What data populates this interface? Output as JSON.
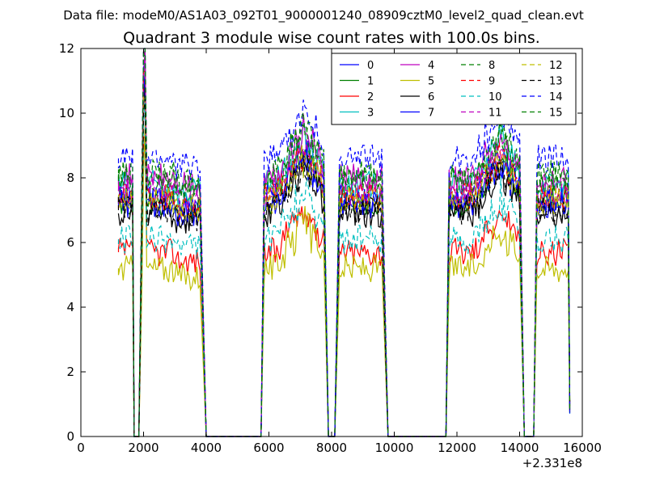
{
  "header": {
    "file_label": "Data file: modeM0/AS1A03_092T01_9000001240_08909cztM0_level2_quad_clean.evt"
  },
  "chart_data": {
    "type": "line",
    "title": "Quadrant 3 module wise count rates with 100.0s bins.",
    "xlabel": "",
    "ylabel": "",
    "x_offset_label": "+2.331e8",
    "xlim": [
      0,
      16000
    ],
    "ylim": [
      0,
      12
    ],
    "x_ticks": [
      0,
      2000,
      4000,
      6000,
      8000,
      10000,
      12000,
      14000,
      16000
    ],
    "y_ticks": [
      0,
      2,
      4,
      6,
      8,
      10,
      12
    ],
    "grid": false,
    "legend_position": "top-right",
    "legend_columns": 4,
    "series": [
      {
        "name": "0",
        "color": "#0000ff",
        "dash": "solid"
      },
      {
        "name": "1",
        "color": "#008000",
        "dash": "solid"
      },
      {
        "name": "2",
        "color": "#ff0000",
        "dash": "solid"
      },
      {
        "name": "3",
        "color": "#00bfbf",
        "dash": "solid"
      },
      {
        "name": "4",
        "color": "#bf00bf",
        "dash": "solid"
      },
      {
        "name": "5",
        "color": "#bfbf00",
        "dash": "solid"
      },
      {
        "name": "6",
        "color": "#000000",
        "dash": "solid"
      },
      {
        "name": "7",
        "color": "#0000ff",
        "dash": "solid"
      },
      {
        "name": "8",
        "color": "#008000",
        "dash": "dashed"
      },
      {
        "name": "9",
        "color": "#ff0000",
        "dash": "dashed"
      },
      {
        "name": "10",
        "color": "#00bfbf",
        "dash": "dashed"
      },
      {
        "name": "11",
        "color": "#bf00bf",
        "dash": "dashed"
      },
      {
        "name": "12",
        "color": "#bfbf00",
        "dash": "dashed"
      },
      {
        "name": "13",
        "color": "#000000",
        "dash": "dashed"
      },
      {
        "name": "14",
        "color": "#0000ff",
        "dash": "dashed"
      },
      {
        "name": "15",
        "color": "#008000",
        "dash": "dashed"
      }
    ],
    "base_levels": [
      7.4,
      7.3,
      5.7,
      7.8,
      8.0,
      5.2,
      6.9,
      7.2,
      7.9,
      7.4,
      6.1,
      7.6,
      7.3,
      7.0,
      8.6,
      8.1
    ],
    "active_segments": [
      {
        "x_start": 1200,
        "x_end": 1650
      },
      {
        "x_start": 1950,
        "x_end": 3800
      },
      {
        "x_start": 5850,
        "x_end": 7750
      },
      {
        "x_start": 8250,
        "x_end": 9600
      },
      {
        "x_start": 11750,
        "x_end": 14000
      },
      {
        "x_start": 14550,
        "x_end": 15550
      }
    ],
    "gaps": [
      {
        "x_start": 1700,
        "x_end": 1850,
        "value": 0
      },
      {
        "x_start": 4000,
        "x_end": 5750,
        "value": 0
      },
      {
        "x_start": 7900,
        "x_end": 8100,
        "value": 0
      },
      {
        "x_start": 9800,
        "x_end": 11650,
        "value": 0
      },
      {
        "x_start": 14150,
        "x_end": 14450,
        "value": 0
      }
    ],
    "spike": {
      "x": 2000,
      "max_value": 11.6
    },
    "bumps": [
      {
        "x": 7100,
        "peak_add": 1.8
      },
      {
        "x": 13400,
        "peak_add": 1.6
      }
    ]
  }
}
